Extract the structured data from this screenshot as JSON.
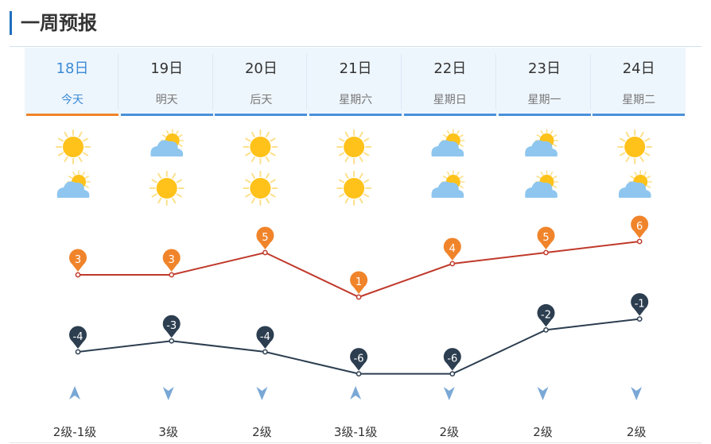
{
  "header": {
    "title": "一周预报"
  },
  "colors": {
    "accent": "#1f6fbf",
    "active_tab": "#f0842a",
    "tab_line": "#4a90d9",
    "high_line": "#c0392b",
    "high_marker": "#f0842a",
    "low_line": "#2c3e50",
    "low_marker": "#2c3e50",
    "wind_arrow": "#7aa8d6"
  },
  "days": [
    {
      "date": "18日",
      "weekday": "今天",
      "active": true,
      "icon_day": "sunny-icon",
      "icon_night": "partly-cloudy-icon",
      "high": 3,
      "low": -4,
      "wind_dir": "up",
      "wind": "2级-1级"
    },
    {
      "date": "19日",
      "weekday": "明天",
      "active": false,
      "icon_day": "partly-cloudy-icon",
      "icon_night": "sunny-icon",
      "high": 3,
      "low": -3,
      "wind_dir": "down",
      "wind": "3级"
    },
    {
      "date": "20日",
      "weekday": "后天",
      "active": false,
      "icon_day": "sunny-icon",
      "icon_night": "sunny-icon",
      "high": 5,
      "low": -4,
      "wind_dir": "down",
      "wind": "2级"
    },
    {
      "date": "21日",
      "weekday": "星期六",
      "active": false,
      "icon_day": "sunny-icon",
      "icon_night": "sunny-icon",
      "high": 1,
      "low": -6,
      "wind_dir": "up",
      "wind": "3级-1级"
    },
    {
      "date": "22日",
      "weekday": "星期日",
      "active": false,
      "icon_day": "partly-cloudy-icon",
      "icon_night": "partly-cloudy-icon",
      "high": 4,
      "low": -6,
      "wind_dir": "down",
      "wind": "2级"
    },
    {
      "date": "23日",
      "weekday": "星期一",
      "active": false,
      "icon_day": "partly-cloudy-icon",
      "icon_night": "partly-cloudy-icon",
      "high": 5,
      "low": -2,
      "wind_dir": "down",
      "wind": "2级"
    },
    {
      "date": "24日",
      "weekday": "星期二",
      "active": false,
      "icon_day": "sunny-icon",
      "icon_night": "partly-cloudy-icon",
      "high": 6,
      "low": -1,
      "wind_dir": "down",
      "wind": "2级"
    }
  ]
}
